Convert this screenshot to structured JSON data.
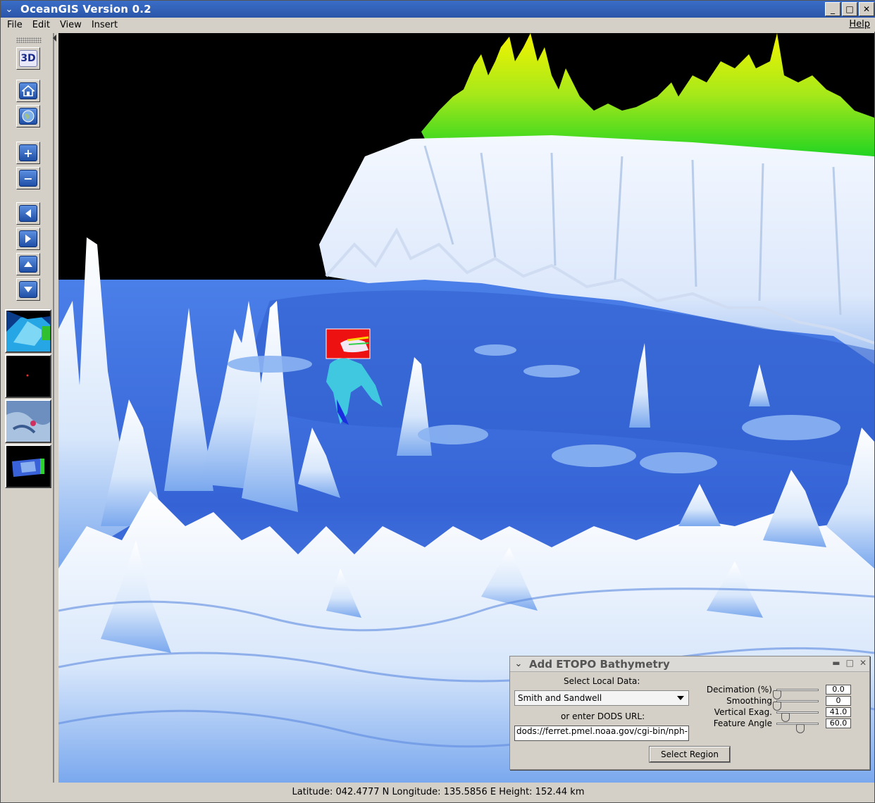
{
  "window": {
    "title": "OceanGIS Version 0.2",
    "controls": [
      "_",
      "□",
      "✕"
    ]
  },
  "menubar": {
    "items": [
      "File",
      "Edit",
      "View",
      "Insert"
    ],
    "help": "Help"
  },
  "toolbar": {
    "mode_button": "3D",
    "buttons": [
      "home-icon",
      "globe-icon",
      "zoom-in-icon",
      "zoom-out-icon",
      "pan-left-icon",
      "pan-right-icon",
      "pan-up-icon",
      "pan-down-icon"
    ]
  },
  "statusbar": {
    "text": "Latitude: 042.4777 N Longitude: 135.5856 E Height: 152.44 km"
  },
  "dialog": {
    "title": "Add ETOPO Bathymetry",
    "select_local_label": "Select Local Data:",
    "selected_dataset": "Smith and Sandwell",
    "dods_label": "or enter DODS URL:",
    "dods_url": "dods://ferret.pmel.noaa.gov/cgi-bin/nph-",
    "select_region_button": "Select Region",
    "params": [
      {
        "label": "Decimation (%)",
        "value": "0.0",
        "level": 0.0
      },
      {
        "label": "Smoothing",
        "value": "0",
        "level": 0.0
      },
      {
        "label": "Vertical Exag.",
        "value": "41.0",
        "level": 0.2
      },
      {
        "label": "Feature Angle",
        "value": "60.0",
        "level": 0.55
      }
    ]
  },
  "colors": {
    "titlebar": "#2f5fb8",
    "terrain_high": "#e8f0ff",
    "terrain_deep": "#3a6ee0",
    "land_green": "#3cd63c",
    "land_yellow": "#f0f000"
  }
}
